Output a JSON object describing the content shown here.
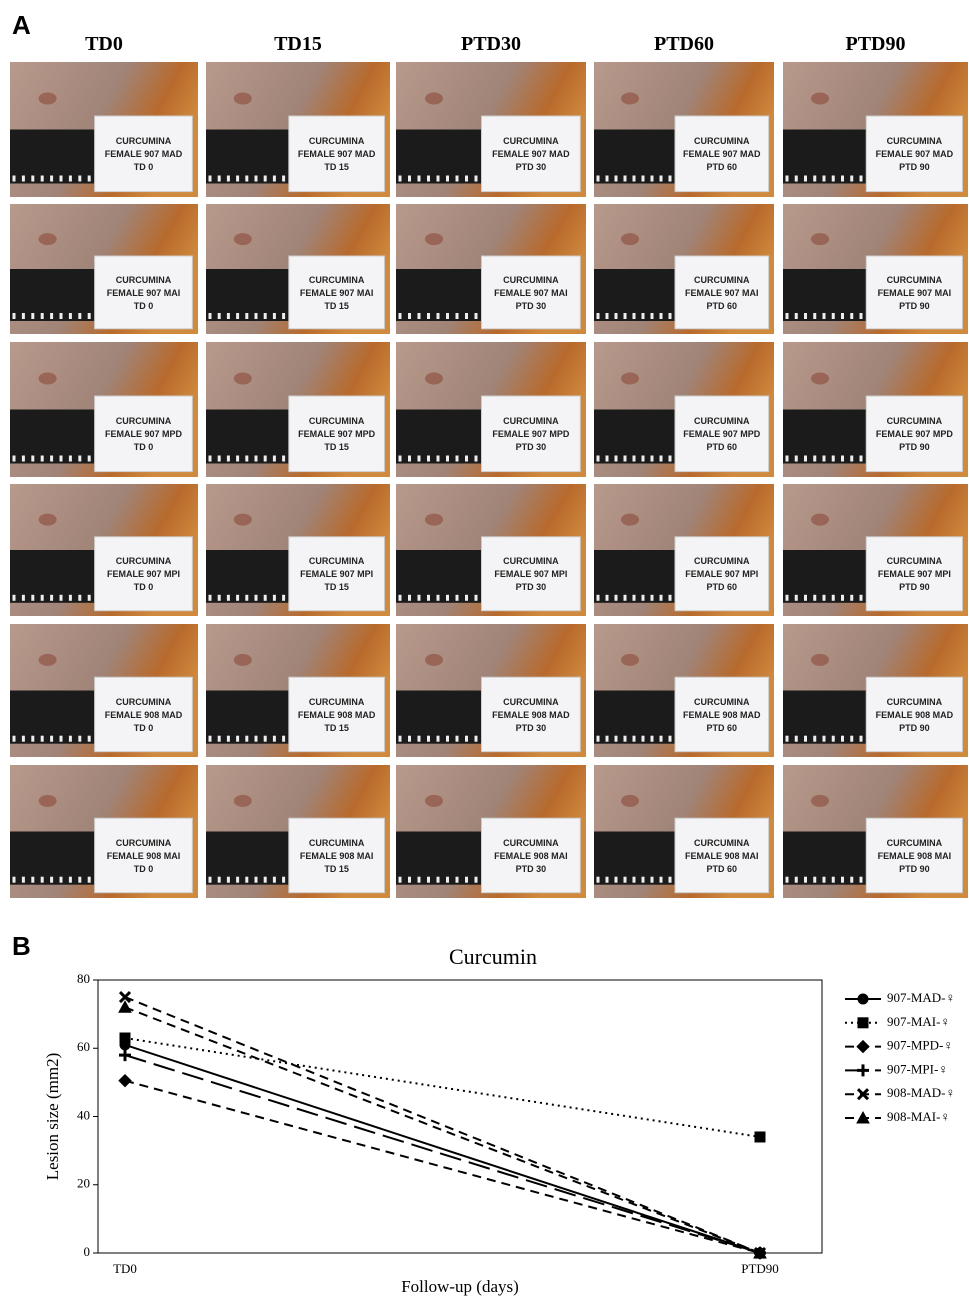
{
  "panel_labels": [
    "A",
    "B"
  ],
  "photo_grid": {
    "columns": [
      "TD0",
      "TD15",
      "PTD30",
      "PTD60",
      "PTD90"
    ],
    "cards": [
      [
        [
          "CURCUMINA",
          "FEMALE 907 MAD",
          "TD 0"
        ],
        [
          "CURCUMINA",
          "FEMALE 907 MAD",
          "TD 15"
        ],
        [
          "CURCUMINA",
          "FEMALE 907 MAD",
          "PTD 30"
        ],
        [
          "CURCUMINA",
          "FEMALE 907 MAD",
          "PTD 60"
        ],
        [
          "CURCUMINA",
          "FEMALE 907 MAD",
          "PTD 90"
        ]
      ],
      [
        [
          "CURCUMINA",
          "FEMALE 907 MAI",
          "TD 0"
        ],
        [
          "CURCUMINA",
          "FEMALE 907 MAI",
          "TD 15"
        ],
        [
          "CURCUMINA",
          "FEMALE 907 MAI",
          "PTD 30"
        ],
        [
          "CURCUMINA",
          "FEMALE 907 MAI",
          "PTD 60"
        ],
        [
          "CURCUMINA",
          "FEMALE 907 MAI",
          "PTD 90"
        ]
      ],
      [
        [
          "CURCUMINA",
          "FEMALE 907 MPD",
          "TD 0"
        ],
        [
          "CURCUMINA",
          "FEMALE 907 MPD",
          "TD 15"
        ],
        [
          "CURCUMINA",
          "FEMALE 907 MPD",
          "PTD 30"
        ],
        [
          "CURCUMINA",
          "FEMALE 907 MPD",
          "PTD 60"
        ],
        [
          "CURCUMINA",
          "FEMALE 907 MPD",
          "PTD 90"
        ]
      ],
      [
        [
          "CURCUMINA",
          "FEMALE 907 MPI",
          "TD 0"
        ],
        [
          "CURCUMINA",
          "FEMALE 907 MPI",
          "TD 15"
        ],
        [
          "CURCUMINA",
          "FEMALE 907 MPI",
          "PTD 30"
        ],
        [
          "CURCUMINA",
          "FEMALE 907 MPI",
          "PTD 60"
        ],
        [
          "CURCUMINA",
          "FEMALE 907 MPI",
          "PTD 90"
        ]
      ],
      [
        [
          "CURCUMINA",
          "FEMALE 908 MAD",
          "TD 0"
        ],
        [
          "CURCUMINA",
          "FEMALE 908 MAD",
          "TD 15"
        ],
        [
          "CURCUMINA",
          "FEMALE 908 MAD",
          "PTD 30"
        ],
        [
          "CURCUMINA",
          "FEMALE 908 MAD",
          "PTD 60"
        ],
        [
          "CURCUMINA",
          "FEMALE 908 MAD",
          "PTD 90"
        ]
      ],
      [
        [
          "CURCUMINA",
          "FEMALE 908 MAI",
          "TD 0"
        ],
        [
          "CURCUMINA",
          "FEMALE 908 MAI",
          "TD 15"
        ],
        [
          "CURCUMINA",
          "FEMALE 908 MAI",
          "PTD 30"
        ],
        [
          "CURCUMINA",
          "FEMALE 908 MAI",
          "PTD 60"
        ],
        [
          "CURCUMINA",
          "FEMALE 908 MAI",
          "PTD 90"
        ]
      ]
    ]
  },
  "chart_data": {
    "type": "line",
    "title": "Curcumin",
    "x_label": "Follow-up (days)",
    "y_label": "Lesion size (mm2)",
    "categories": [
      "TD0",
      "PTD90"
    ],
    "ylim": [
      0,
      80
    ],
    "yticks": [
      0,
      20,
      40,
      60,
      80
    ],
    "grid": false,
    "legend": "right",
    "series": [
      {
        "name": "907-MAD-♀",
        "color": "#000000",
        "dash": "solid",
        "marker": "circle",
        "values": [
          61,
          0
        ]
      },
      {
        "name": "907-MAI-♀",
        "color": "#000000",
        "dash": "dotted",
        "marker": "square",
        "values": [
          63,
          34
        ]
      },
      {
        "name": "907-MPD-♀",
        "color": "#000000",
        "dash": "dashed",
        "marker": "diamond",
        "values": [
          50.5,
          0
        ]
      },
      {
        "name": "907-MPI-♀",
        "color": "#000000",
        "dash": "long-dashed",
        "marker": "plus",
        "values": [
          58,
          0
        ]
      },
      {
        "name": "908-MAD-♀",
        "color": "#000000",
        "dash": "dashed",
        "marker": "x",
        "values": [
          75,
          0
        ]
      },
      {
        "name": "908-MAI-♀",
        "color": "#000000",
        "dash": "dashed",
        "marker": "triangle",
        "values": [
          72,
          0
        ]
      }
    ]
  }
}
